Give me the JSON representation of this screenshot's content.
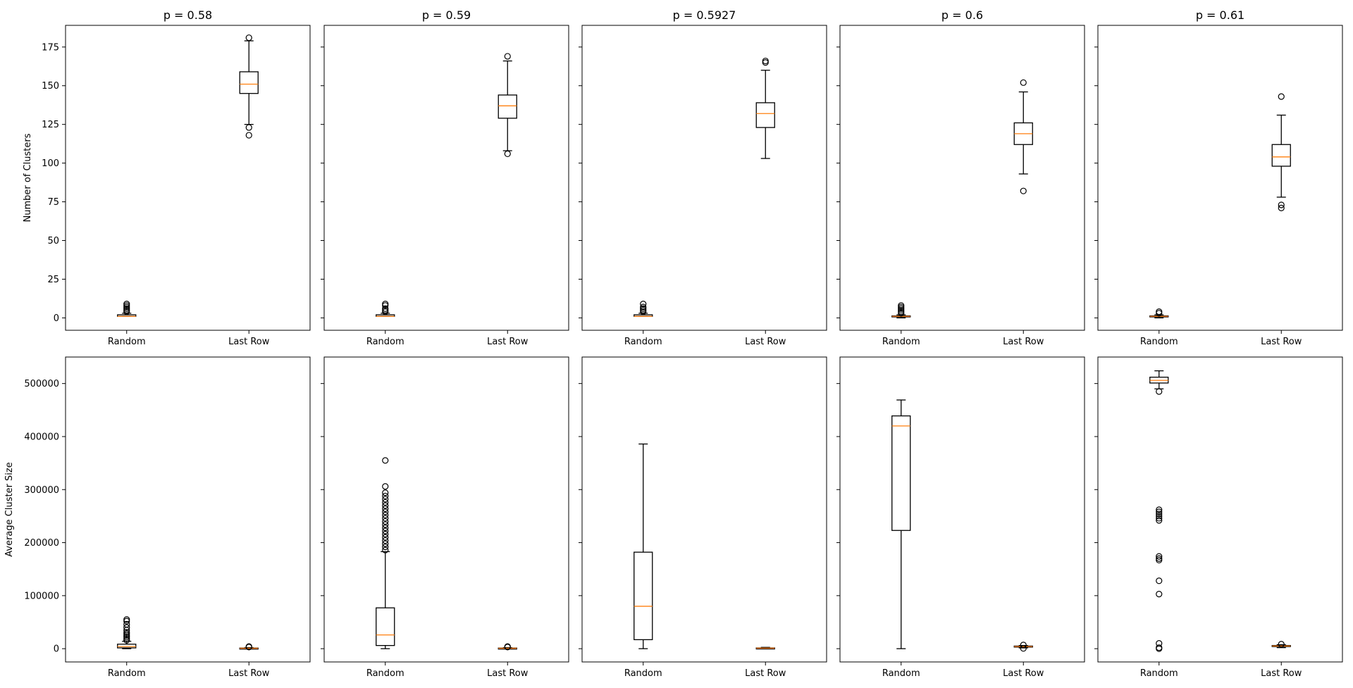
{
  "chart_data": {
    "type": "box",
    "layout": "2 rows x 5 columns, y axes shared across each row",
    "titles": [
      "p = 0.58",
      "p = 0.59",
      "p = 0.5927",
      "p = 0.6",
      "p = 0.61"
    ],
    "categories": [
      "Random",
      "Last Row"
    ],
    "colors": {
      "box": "#000000",
      "median": "#ff7f0e"
    },
    "rows": [
      {
        "ylabel": "Number of Clusters",
        "ylim": [
          -8,
          189
        ],
        "yticks": [
          0,
          25,
          50,
          75,
          100,
          125,
          150,
          175
        ],
        "ytick_labels": [
          "0",
          "25",
          "50",
          "75",
          "100",
          "125",
          "150",
          "175"
        ],
        "panels": [
          {
            "boxes": [
              {
                "category": "Random",
                "whislo": 1,
                "q1": 1,
                "median": 1,
                "q3": 2,
                "whishi": 3,
                "fliers": [
                  4,
                  5,
                  6,
                  7,
                  8,
                  9
                ]
              },
              {
                "category": "Last Row",
                "whislo": 125,
                "q1": 145,
                "median": 151,
                "q3": 159,
                "whishi": 179,
                "fliers": [
                  118,
                  123,
                  181
                ]
              }
            ]
          },
          {
            "boxes": [
              {
                "category": "Random",
                "whislo": 1,
                "q1": 1,
                "median": 1,
                "q3": 2,
                "whishi": 3,
                "fliers": [
                  4,
                  5,
                  6,
                  8,
                  9
                ]
              },
              {
                "category": "Last Row",
                "whislo": 108,
                "q1": 129,
                "median": 137,
                "q3": 144,
                "whishi": 166,
                "fliers": [
                  106,
                  169
                ]
              }
            ]
          },
          {
            "boxes": [
              {
                "category": "Random",
                "whislo": 1,
                "q1": 1,
                "median": 1,
                "q3": 2,
                "whishi": 3,
                "fliers": [
                  4,
                  5,
                  6,
                  7,
                  9
                ]
              },
              {
                "category": "Last Row",
                "whislo": 103,
                "q1": 123,
                "median": 132,
                "q3": 139,
                "whishi": 160,
                "fliers": [
                  165,
                  166
                ]
              }
            ]
          },
          {
            "boxes": [
              {
                "category": "Random",
                "whislo": 0,
                "q1": 0.7,
                "median": 1,
                "q3": 1.3,
                "whishi": 2,
                "fliers": [
                  3,
                  4,
                  5,
                  6,
                  7,
                  8
                ]
              },
              {
                "category": "Last Row",
                "whislo": 93,
                "q1": 112,
                "median": 119,
                "q3": 126,
                "whishi": 146,
                "fliers": [
                  82,
                  152
                ]
              }
            ]
          },
          {
            "boxes": [
              {
                "category": "Random",
                "whislo": 0,
                "q1": 0.7,
                "median": 1,
                "q3": 1.3,
                "whishi": 2,
                "fliers": [
                  3,
                  4
                ]
              },
              {
                "category": "Last Row",
                "whislo": 78,
                "q1": 98,
                "median": 104,
                "q3": 112,
                "whishi": 131,
                "fliers": [
                  71,
                  73,
                  143
                ]
              }
            ]
          }
        ]
      },
      {
        "ylabel": "Average Cluster Size",
        "ylim": [
          -25000,
          550000
        ],
        "yticks": [
          0,
          100000,
          200000,
          300000,
          400000,
          500000
        ],
        "ytick_labels": [
          "0",
          "100000",
          "200000",
          "300000",
          "400000",
          "500000"
        ],
        "panels": [
          {
            "boxes": [
              {
                "category": "Random",
                "whislo": 0,
                "q1": 1500,
                "median": 4000,
                "q3": 8500,
                "whishi": 14000,
                "fliers": [
                  16000,
                  19000,
                  22000,
                  25000,
                  28000,
                  31000,
                  35000,
                  40000,
                  46000,
                  52000,
                  55000
                ]
              },
              {
                "category": "Last Row",
                "whislo": 0,
                "q1": 400,
                "median": 800,
                "q3": 1300,
                "whishi": 2000,
                "fliers": [
                  3000,
                  4000
                ]
              }
            ]
          },
          {
            "boxes": [
              {
                "category": "Random",
                "whislo": 0,
                "q1": 6000,
                "median": 26000,
                "q3": 77000,
                "whishi": 183000,
                "fliers": [
                  186000,
                  192000,
                  198000,
                  204000,
                  210000,
                  216000,
                  222000,
                  228000,
                  234000,
                  240000,
                  246000,
                  252000,
                  258000,
                  264000,
                  270000,
                  276000,
                  282000,
                  288000,
                  294000,
                  306000,
                  355000
                ]
              },
              {
                "category": "Last Row",
                "whislo": 0,
                "q1": 400,
                "median": 800,
                "q3": 1300,
                "whishi": 2000,
                "fliers": [
                  3000,
                  4000
                ]
              }
            ]
          },
          {
            "boxes": [
              {
                "category": "Random",
                "whislo": 0,
                "q1": 17000,
                "median": 80000,
                "q3": 182000,
                "whishi": 386000,
                "fliers": []
              },
              {
                "category": "Last Row",
                "whislo": 0,
                "q1": 500,
                "median": 1000,
                "q3": 1500,
                "whishi": 2500,
                "fliers": []
              }
            ]
          },
          {
            "boxes": [
              {
                "category": "Random",
                "whislo": 0,
                "q1": 223000,
                "median": 420000,
                "q3": 439000,
                "whishi": 469000,
                "fliers": []
              },
              {
                "category": "Last Row",
                "whislo": 1500,
                "q1": 3000,
                "median": 4000,
                "q3": 5000,
                "whishi": 6000,
                "fliers": [
                  500,
                  7000
                ]
              }
            ]
          },
          {
            "boxes": [
              {
                "category": "Random",
                "whislo": 490000,
                "q1": 501000,
                "median": 506000,
                "q3": 512000,
                "whishi": 524000,
                "fliers": [
                  485000,
                  262000,
                  258000,
                  254000,
                  250000,
                  246000,
                  242000,
                  174000,
                  170000,
                  167000,
                  128000,
                  103000,
                  10000,
                  2000,
                  0
                ]
              },
              {
                "category": "Last Row",
                "whislo": 2000,
                "q1": 4000,
                "median": 5000,
                "q3": 6000,
                "whishi": 7500,
                "fliers": [
                  8500
                ]
              }
            ]
          }
        ]
      }
    ]
  }
}
